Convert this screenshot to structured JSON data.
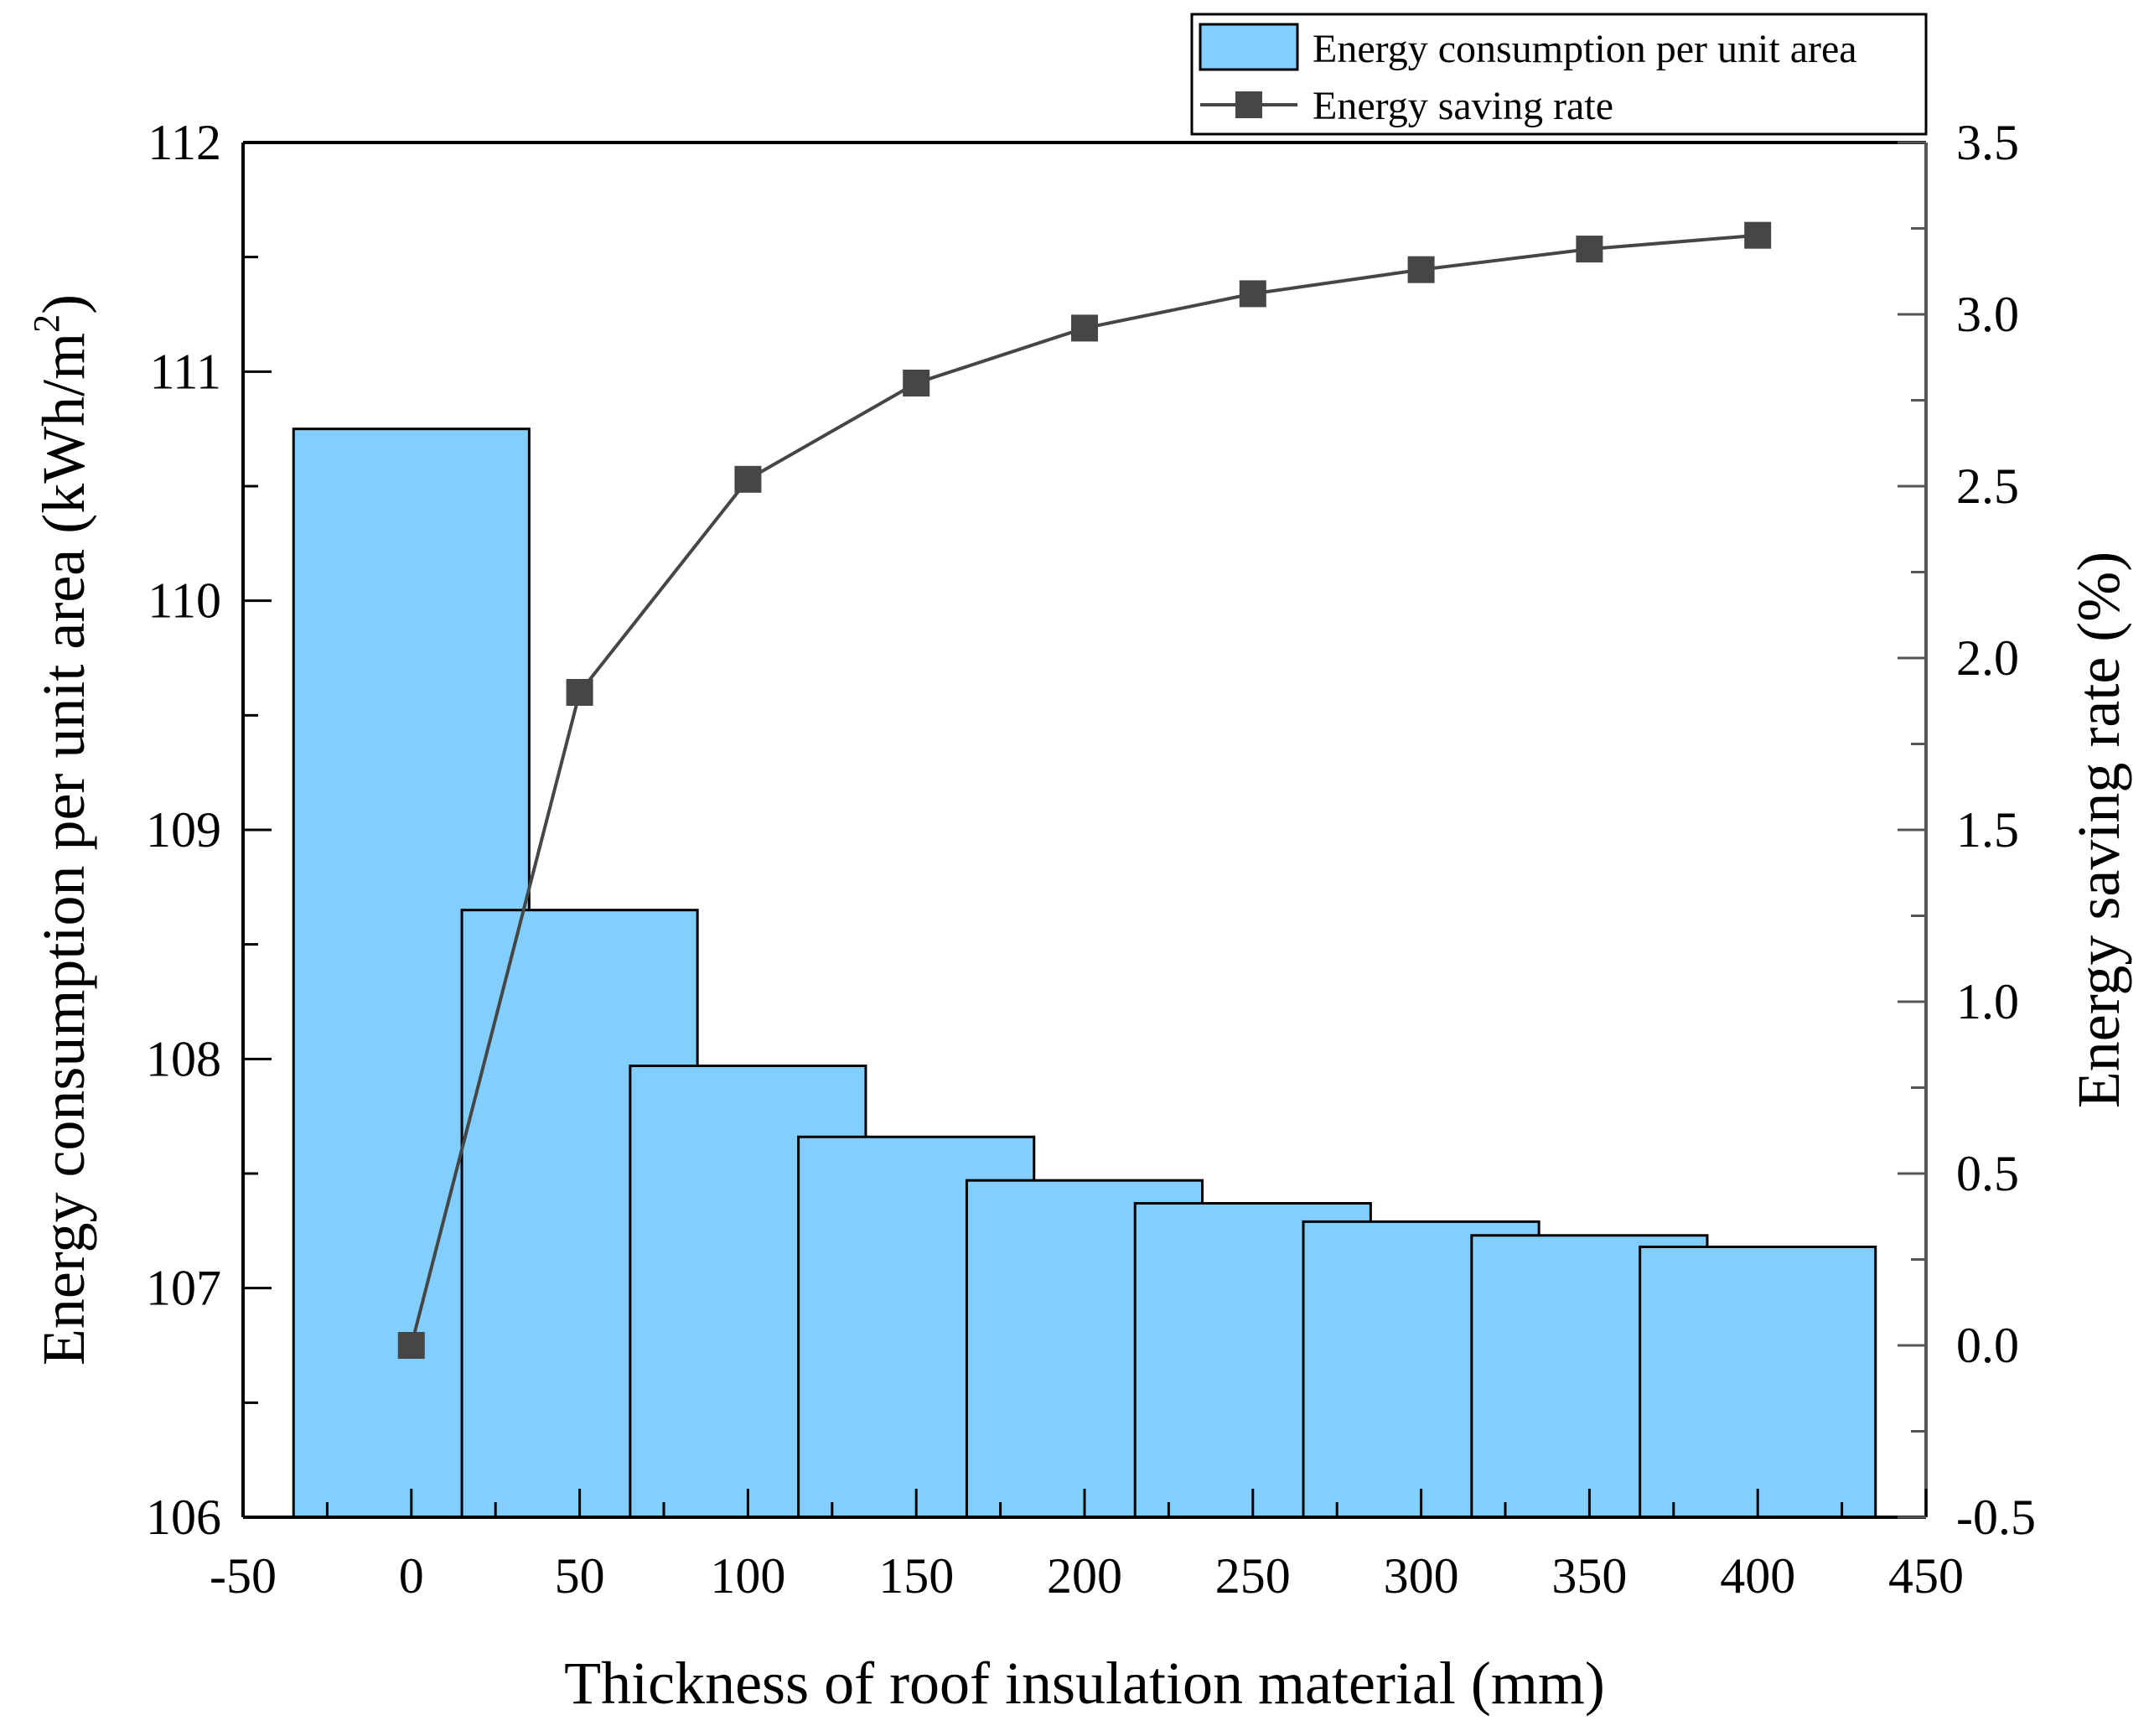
{
  "chart_data": {
    "type": "bar+line",
    "title": "",
    "xlabel": "Thickness of roof insulation material (mm)",
    "ylabel_left": "Energy consumption per unit area (kWh/m",
    "ylabel_left_sup": "2",
    "ylabel_left_close": ")",
    "ylabel_right": "Energy saving rate (%)",
    "xlim": [
      -50,
      450
    ],
    "ylim_left": [
      106,
      112
    ],
    "ylim_right": [
      -0.5,
      3.5
    ],
    "x_ticks": [
      "-50",
      "0",
      "50",
      "100",
      "150",
      "200",
      "250",
      "300",
      "350",
      "400",
      "450"
    ],
    "y_left_ticks": [
      "106",
      "107",
      "108",
      "109",
      "110",
      "111",
      "112"
    ],
    "y_right_ticks": [
      "-0.5",
      "0.0",
      "0.5",
      "1.0",
      "1.5",
      "2.0",
      "2.5",
      "3.0",
      "3.5"
    ],
    "x": [
      0,
      50,
      100,
      150,
      200,
      250,
      300,
      350,
      400
    ],
    "series": [
      {
        "name": "Energy consumption per unit area",
        "type": "bar",
        "axis": "left",
        "color": "#82cfff",
        "values": [
          110.75,
          108.65,
          107.97,
          107.66,
          107.47,
          107.37,
          107.29,
          107.23,
          107.18
        ]
      },
      {
        "name": "Energy saving rate",
        "type": "line",
        "axis": "right",
        "color": "#464646",
        "values": [
          0.0,
          1.9,
          2.52,
          2.8,
          2.96,
          3.06,
          3.13,
          3.19,
          3.23
        ]
      }
    ],
    "legend": {
      "position": "top-right",
      "bar_label": "Energy consumption per unit area",
      "line_label": "Energy saving rate"
    }
  }
}
